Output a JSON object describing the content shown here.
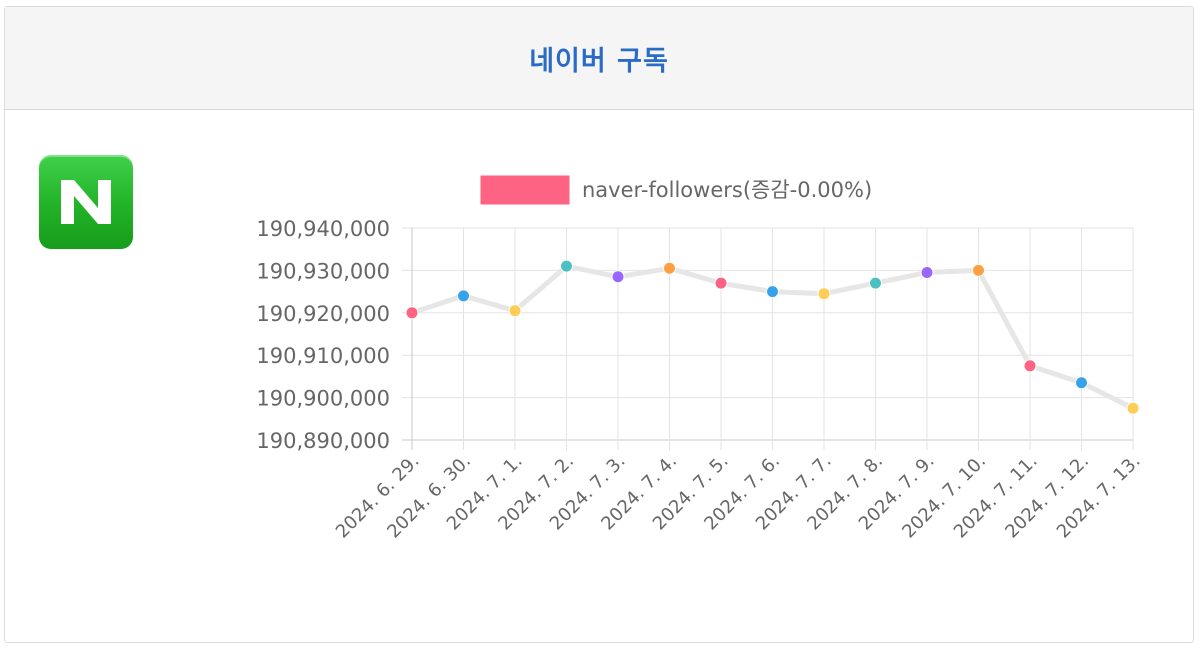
{
  "header": {
    "title": "네이버 구독"
  },
  "logo": {
    "icon": "naver-n-logo-icon",
    "color": "#1fb525"
  },
  "chart_data": {
    "type": "line",
    "legend": {
      "label": "naver-followers(증감-0.00%)",
      "color": "#ff6384",
      "placement": "top"
    },
    "categories": [
      "2024. 6. 29.",
      "2024. 6. 30.",
      "2024. 7. 1.",
      "2024. 7. 2.",
      "2024. 7. 3.",
      "2024. 7. 4.",
      "2024. 7. 5.",
      "2024. 7. 6.",
      "2024. 7. 7.",
      "2024. 7. 8.",
      "2024. 7. 9.",
      "2024. 7. 10.",
      "2024. 7. 11.",
      "2024. 7. 12.",
      "2024. 7. 13."
    ],
    "series": [
      {
        "name": "naver-followers(증감-0.00%)",
        "values": [
          190920000,
          190924000,
          190920500,
          190931000,
          190928500,
          190930500,
          190927000,
          190925000,
          190924500,
          190927000,
          190929500,
          190930000,
          190907500,
          190903500,
          190897500
        ],
        "line_color": "#e6e6e6"
      }
    ],
    "point_colors": [
      "#ff6384",
      "#36a2eb",
      "#ffcd56",
      "#4bc0c0",
      "#9966ff",
      "#ff9f40",
      "#ff6384",
      "#36a2eb",
      "#ffcd56",
      "#4bc0c0",
      "#9966ff",
      "#ff9f40",
      "#ff6384",
      "#36a2eb",
      "#ffcd56"
    ],
    "y_ticks": [
      "190,940,000",
      "190,930,000",
      "190,920,000",
      "190,910,000",
      "190,900,000",
      "190,890,000"
    ],
    "ylim": [
      190890000,
      190940000
    ],
    "grid": true,
    "xlabel": "",
    "ylabel": ""
  }
}
